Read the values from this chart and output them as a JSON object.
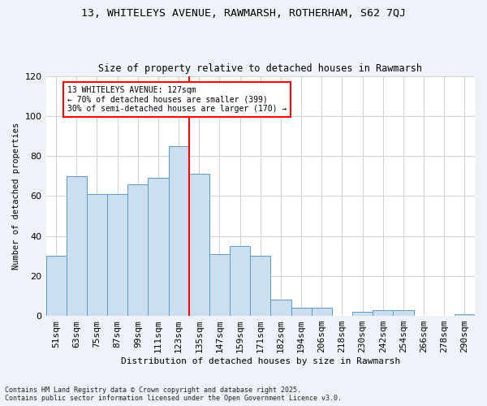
{
  "title_line1": "13, WHITELEYS AVENUE, RAWMARSH, ROTHERHAM, S62 7QJ",
  "title_line2": "Size of property relative to detached houses in Rawmarsh",
  "xlabel": "Distribution of detached houses by size in Rawmarsh",
  "ylabel": "Number of detached properties",
  "categories": [
    "51sqm",
    "63sqm",
    "75sqm",
    "87sqm",
    "99sqm",
    "111sqm",
    "123sqm",
    "135sqm",
    "147sqm",
    "159sqm",
    "171sqm",
    "182sqm",
    "194sqm",
    "206sqm",
    "218sqm",
    "230sqm",
    "242sqm",
    "254sqm",
    "266sqm",
    "278sqm",
    "290sqm"
  ],
  "values": [
    30,
    70,
    61,
    61,
    66,
    69,
    85,
    71,
    31,
    35,
    30,
    8,
    4,
    4,
    0,
    2,
    3,
    3,
    0,
    0,
    1
  ],
  "bar_color": "#ccdff0",
  "bar_edge_color": "#5b9bd5",
  "grid_color": "#d0d0d0",
  "vline_x": 6.5,
  "vline_color": "red",
  "annotation_text": "13 WHITELEYS AVENUE: 127sqm\n← 70% of detached houses are smaller (399)\n30% of semi-detached houses are larger (170) →",
  "annotation_box_color": "white",
  "annotation_box_edge": "red",
  "footnote": "Contains HM Land Registry data © Crown copyright and database right 2025.\nContains public sector information licensed under the Open Government Licence v3.0.",
  "ylim": [
    0,
    120
  ],
  "bg_color": "#eef2f9",
  "plot_bg_color": "white"
}
